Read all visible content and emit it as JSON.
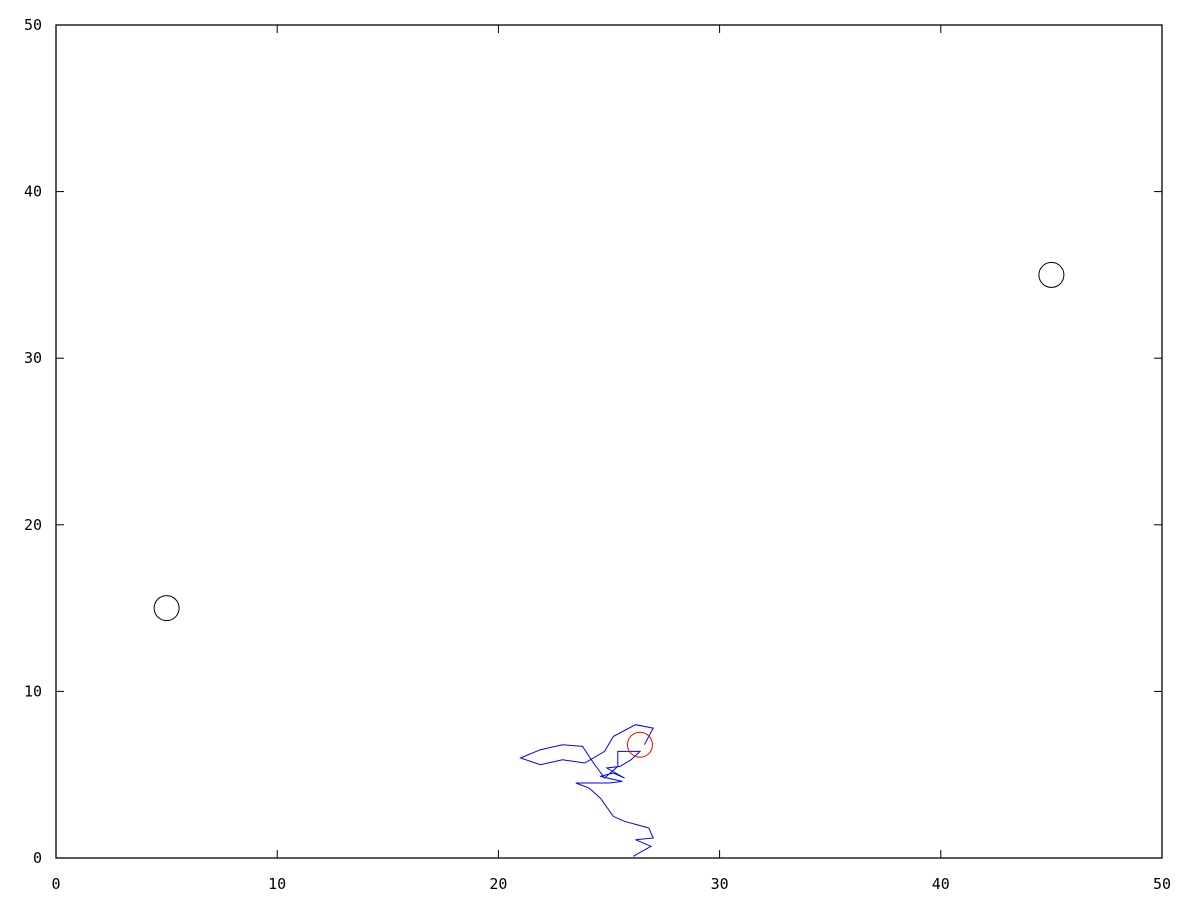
{
  "chart_data": {
    "type": "scatter",
    "title": "",
    "xlabel": "",
    "ylabel": "",
    "xlim": [
      0,
      50
    ],
    "ylim": [
      0,
      50
    ],
    "grid": false,
    "x_ticks": [
      "0",
      "10",
      "20",
      "30",
      "40",
      "50"
    ],
    "y_ticks": [
      "0",
      "10",
      "20",
      "30",
      "40",
      "50"
    ],
    "markers": [
      {
        "x": 5,
        "y": 15,
        "color": "#000000"
      },
      {
        "x": 45,
        "y": 35,
        "color": "#000000"
      },
      {
        "x": 26.4,
        "y": 6.8,
        "color": "#ff0000"
      }
    ],
    "path": {
      "color": "#0000ff",
      "points": [
        [
          26.1,
          0.1
        ],
        [
          26.9,
          0.7
        ],
        [
          26.2,
          1.1
        ],
        [
          27.0,
          1.2
        ],
        [
          26.8,
          1.8
        ],
        [
          25.7,
          2.2
        ],
        [
          25.2,
          2.5
        ],
        [
          24.6,
          3.6
        ],
        [
          24.1,
          4.2
        ],
        [
          23.5,
          4.5
        ],
        [
          25.0,
          4.5
        ],
        [
          25.6,
          4.6
        ],
        [
          24.6,
          4.9
        ],
        [
          25.2,
          5.1
        ],
        [
          25.7,
          4.8
        ],
        [
          25.3,
          5.1
        ],
        [
          24.9,
          5.4
        ],
        [
          25.5,
          5.5
        ],
        [
          26.0,
          5.9
        ],
        [
          26.4,
          6.4
        ],
        [
          25.4,
          6.4
        ],
        [
          25.4,
          5.5
        ],
        [
          24.8,
          4.8
        ],
        [
          24.3,
          5.7
        ],
        [
          23.8,
          6.7
        ],
        [
          22.9,
          6.8
        ],
        [
          21.9,
          6.5
        ],
        [
          21.0,
          6.0
        ],
        [
          21.9,
          5.6
        ],
        [
          22.9,
          5.9
        ],
        [
          23.9,
          5.7
        ],
        [
          24.8,
          6.4
        ],
        [
          25.2,
          7.3
        ],
        [
          26.2,
          8.0
        ],
        [
          27.0,
          7.8
        ],
        [
          26.6,
          6.8
        ]
      ]
    }
  }
}
